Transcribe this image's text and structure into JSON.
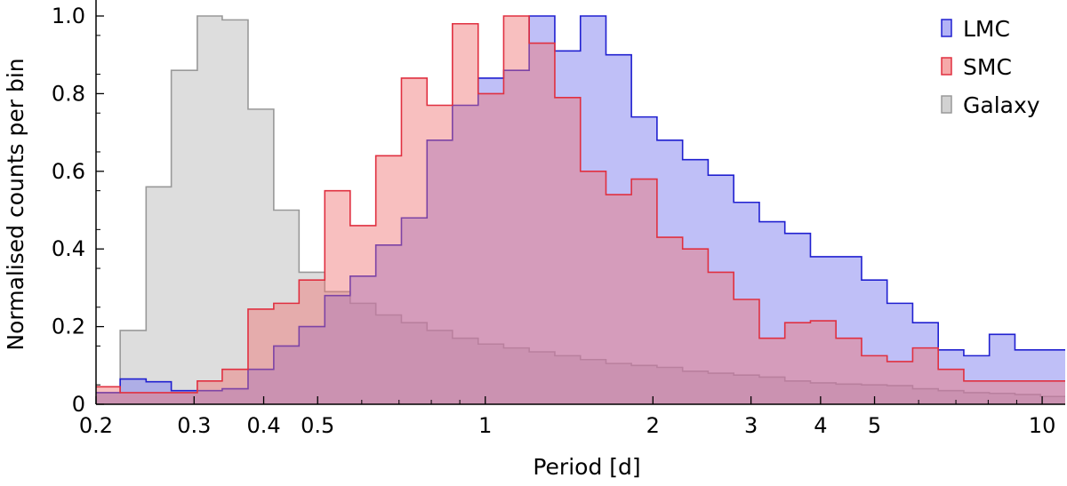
{
  "chart_data": {
    "type": "histogram",
    "xlabel": "Period  [d]",
    "ylabel": "Normalised counts per bin",
    "xscale": "log",
    "xlim": [
      0.2,
      11
    ],
    "ylim": [
      0,
      1.0
    ],
    "x_ticks": [
      {
        "value": 0.2,
        "label": "0.2"
      },
      {
        "value": 0.3,
        "label": "0.3"
      },
      {
        "value": 0.4,
        "label": "0.4"
      },
      {
        "value": 0.5,
        "label": "0.5"
      },
      {
        "value": 1,
        "label": "1"
      },
      {
        "value": 2,
        "label": "2"
      },
      {
        "value": 3,
        "label": "3"
      },
      {
        "value": 4,
        "label": "4"
      },
      {
        "value": 5,
        "label": "5"
      },
      {
        "value": 10,
        "label": "10"
      }
    ],
    "y_ticks": [
      {
        "value": 0,
        "label": "0"
      },
      {
        "value": 0.2,
        "label": "0.2"
      },
      {
        "value": 0.4,
        "label": "0.4"
      },
      {
        "value": 0.6,
        "label": "0.6"
      },
      {
        "value": 0.8,
        "label": "0.8"
      },
      {
        "value": 1.0,
        "label": "1.0"
      }
    ],
    "legend": "top-right",
    "series": [
      {
        "name": "Galaxy",
        "fill": "#b4b4b4",
        "fill_opacity": 0.45,
        "stroke": "#999999",
        "edges": [
          0.2,
          0.221,
          0.246,
          0.273,
          0.304,
          0.337,
          0.375,
          0.417,
          0.463,
          0.515,
          0.572,
          0.636,
          0.707,
          0.786,
          0.873,
          0.971,
          1.079,
          1.199,
          1.333,
          1.482,
          1.647,
          1.83,
          2.034,
          2.261,
          2.513,
          2.793,
          3.105,
          3.451,
          3.836,
          4.263,
          4.739,
          5.267,
          5.854,
          6.507,
          7.232,
          8.038,
          8.935,
          9.931,
          11.038
        ],
        "values": [
          0.03,
          0.19,
          0.56,
          0.86,
          1.0,
          0.99,
          0.76,
          0.5,
          0.34,
          0.29,
          0.26,
          0.23,
          0.21,
          0.19,
          0.17,
          0.155,
          0.145,
          0.135,
          0.125,
          0.115,
          0.105,
          0.1,
          0.095,
          0.085,
          0.08,
          0.075,
          0.07,
          0.06,
          0.055,
          0.052,
          0.05,
          0.048,
          0.04,
          0.035,
          0.03,
          0.028,
          0.025,
          0.02
        ]
      },
      {
        "name": "LMC",
        "fill": "#8080f0",
        "fill_opacity": 0.5,
        "stroke": "#2020d0",
        "edges": [
          0.2,
          0.221,
          0.246,
          0.273,
          0.304,
          0.337,
          0.375,
          0.417,
          0.463,
          0.515,
          0.572,
          0.636,
          0.707,
          0.786,
          0.873,
          0.971,
          1.079,
          1.199,
          1.333,
          1.482,
          1.647,
          1.83,
          2.034,
          2.261,
          2.513,
          2.793,
          3.105,
          3.451,
          3.836,
          4.263,
          4.739,
          5.267,
          5.854,
          6.507,
          7.232,
          8.038,
          8.935,
          9.931,
          11.038
        ],
        "values": [
          0.03,
          0.065,
          0.058,
          0.035,
          0.035,
          0.04,
          0.09,
          0.15,
          0.2,
          0.28,
          0.33,
          0.41,
          0.48,
          0.68,
          0.77,
          0.84,
          0.86,
          1.0,
          0.91,
          1.0,
          0.9,
          0.74,
          0.68,
          0.63,
          0.59,
          0.52,
          0.47,
          0.44,
          0.38,
          0.38,
          0.32,
          0.26,
          0.21,
          0.14,
          0.125,
          0.18,
          0.14,
          0.14
        ]
      },
      {
        "name": "SMC",
        "fill": "#f07070",
        "fill_opacity": 0.45,
        "stroke": "#e03040",
        "edges": [
          0.2,
          0.221,
          0.246,
          0.273,
          0.304,
          0.337,
          0.375,
          0.417,
          0.463,
          0.515,
          0.572,
          0.636,
          0.707,
          0.786,
          0.873,
          0.971,
          1.079,
          1.199,
          1.333,
          1.482,
          1.647,
          1.83,
          2.034,
          2.261,
          2.513,
          2.793,
          3.105,
          3.451,
          3.836,
          4.263,
          4.739,
          5.267,
          5.854,
          6.507,
          7.232,
          8.038,
          8.935,
          9.931,
          11.038
        ],
        "values": [
          0.045,
          0.03,
          0.03,
          0.03,
          0.06,
          0.09,
          0.245,
          0.26,
          0.32,
          0.55,
          0.46,
          0.64,
          0.84,
          0.77,
          0.98,
          0.8,
          1.0,
          0.93,
          0.79,
          0.6,
          0.54,
          0.58,
          0.43,
          0.4,
          0.34,
          0.27,
          0.17,
          0.21,
          0.215,
          0.17,
          0.125,
          0.11,
          0.145,
          0.09,
          0.06,
          0.06,
          0.06,
          0.06
        ]
      }
    ],
    "legend_order": [
      "LMC",
      "SMC",
      "Galaxy"
    ]
  }
}
